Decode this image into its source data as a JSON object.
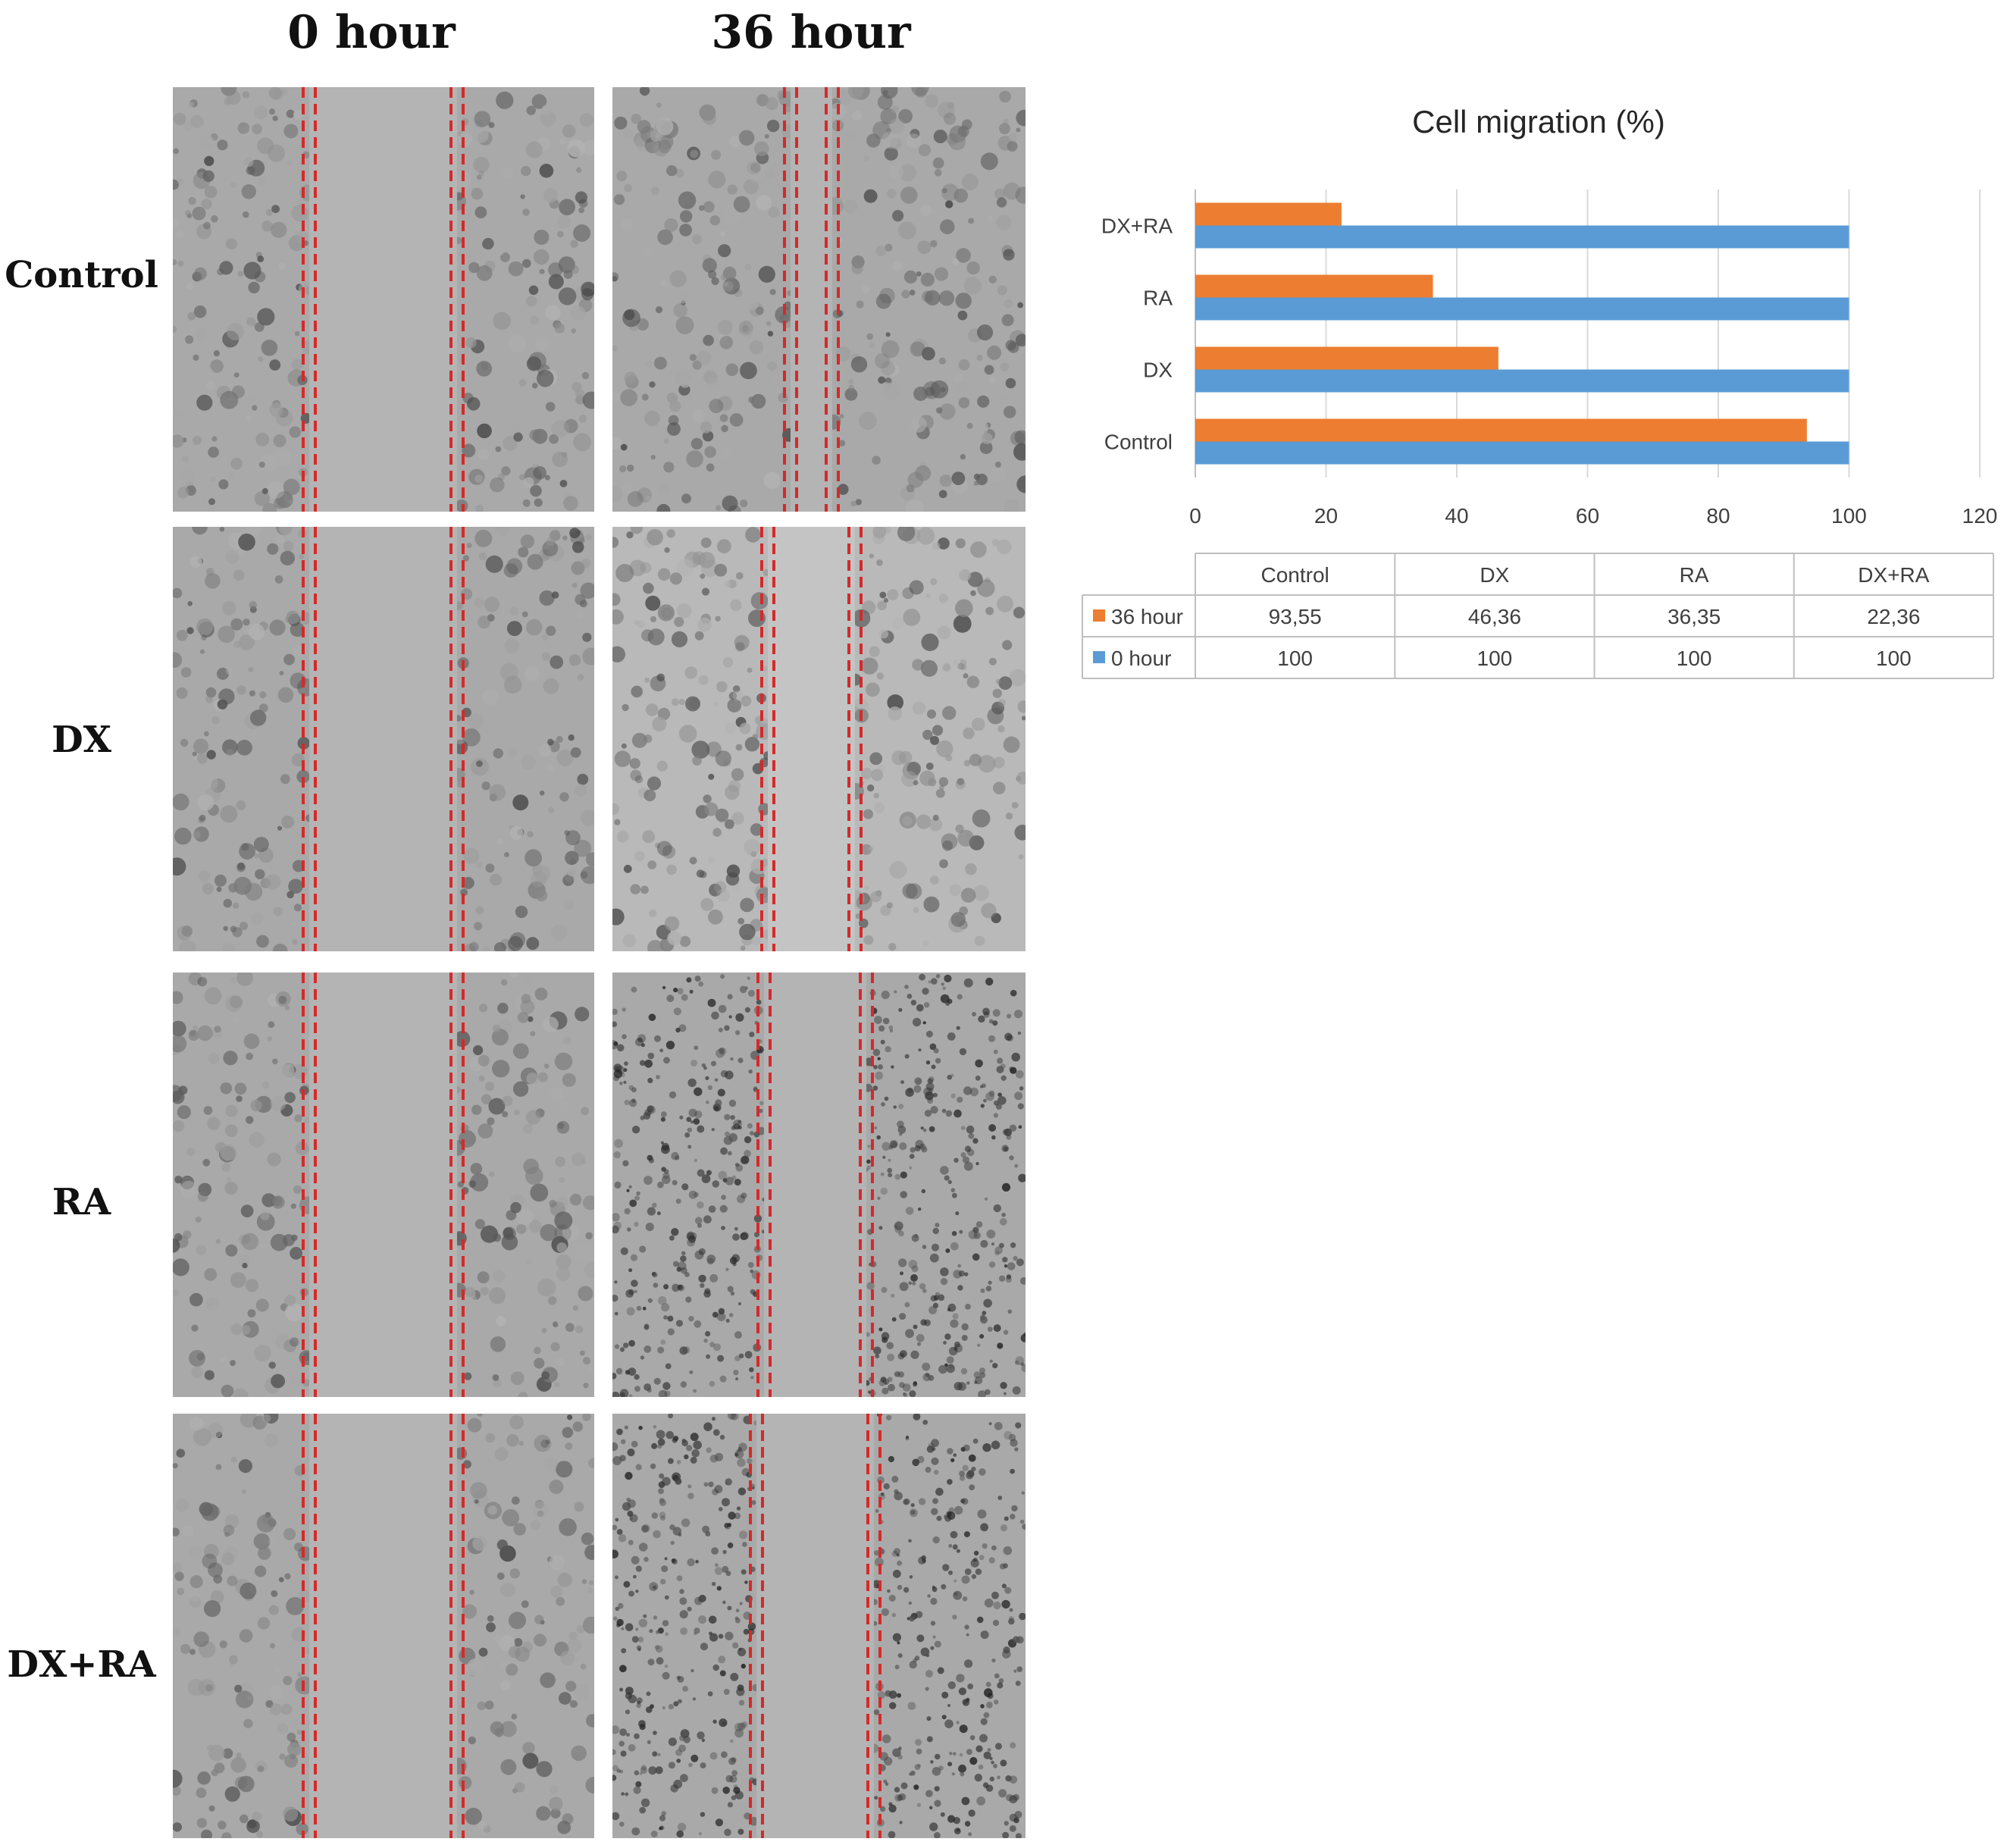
{
  "figure": {
    "column_headers": [
      "0 hour",
      "36 hour"
    ],
    "row_labels": [
      "Control",
      "DX",
      "RA",
      "DX+RA"
    ]
  },
  "chart_data": {
    "type": "bar",
    "orientation": "horizontal",
    "title": "Cell migration (%)",
    "categories": [
      "Control",
      "DX",
      "RA",
      "DX+RA"
    ],
    "series": [
      {
        "name": "36 hour",
        "values": [
          93.55,
          46.36,
          36.35,
          22.36
        ],
        "display": [
          "93,55",
          "46,36",
          "36,35",
          "22,36"
        ],
        "color": "#ED7D31"
      },
      {
        "name": "0 hour",
        "values": [
          100,
          100,
          100,
          100
        ],
        "display": [
          "100",
          "100",
          "100",
          "100"
        ],
        "color": "#5B9BD5"
      }
    ],
    "xlim": [
      0,
      120
    ],
    "xticks": [
      "0",
      "20",
      "40",
      "60",
      "80",
      "100",
      "120"
    ],
    "grid": true,
    "data_table": true
  },
  "colors": {
    "dashed_border": "#D42A2A",
    "gridline": "#D9D9D9",
    "axis_text": "#404040"
  }
}
